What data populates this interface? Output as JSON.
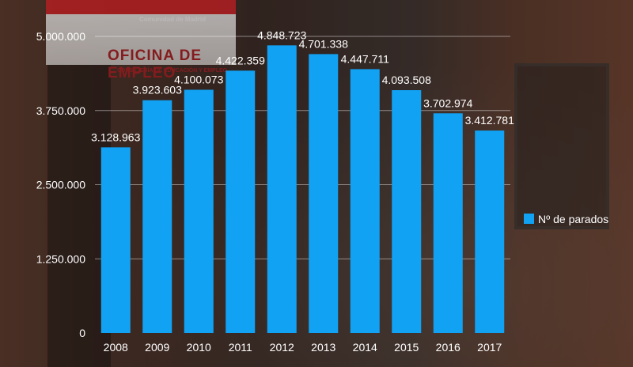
{
  "background": {
    "sign_small_text": "Comunidad de Madrid",
    "sign_text": "OFICINA DE EMPLEO",
    "sign_sub_text": "CONSEJERÍA DE EDUCACIÓN Y EMPLEO"
  },
  "chart_data": {
    "type": "bar",
    "title": "",
    "xlabel": "",
    "ylabel": "",
    "categories": [
      "2008",
      "2009",
      "2010",
      "2011",
      "2012",
      "2013",
      "2014",
      "2015",
      "2016",
      "2017"
    ],
    "series": [
      {
        "name": "Nº de parados",
        "color": "#11a2f4",
        "values": [
          3128963,
          3923603,
          4100073,
          4422359,
          4848723,
          4701338,
          4447711,
          4093508,
          3702974,
          3412781
        ],
        "labels": [
          "3.128.963",
          "3.923.603",
          "4.100.073",
          "4.422.359",
          "4.848.723",
          "4.701.338",
          "4.447.711",
          "4.093.508",
          "3.702.974",
          "3.412.781"
        ]
      }
    ],
    "ylim": [
      0,
      5000000
    ],
    "yticks": [
      0,
      1250000,
      2500000,
      3750000,
      5000000
    ],
    "ytick_labels": [
      "0",
      "1.250.000",
      "2.500.000",
      "3.750.000",
      "5.000.000"
    ],
    "grid": true,
    "legend_position": "right"
  }
}
